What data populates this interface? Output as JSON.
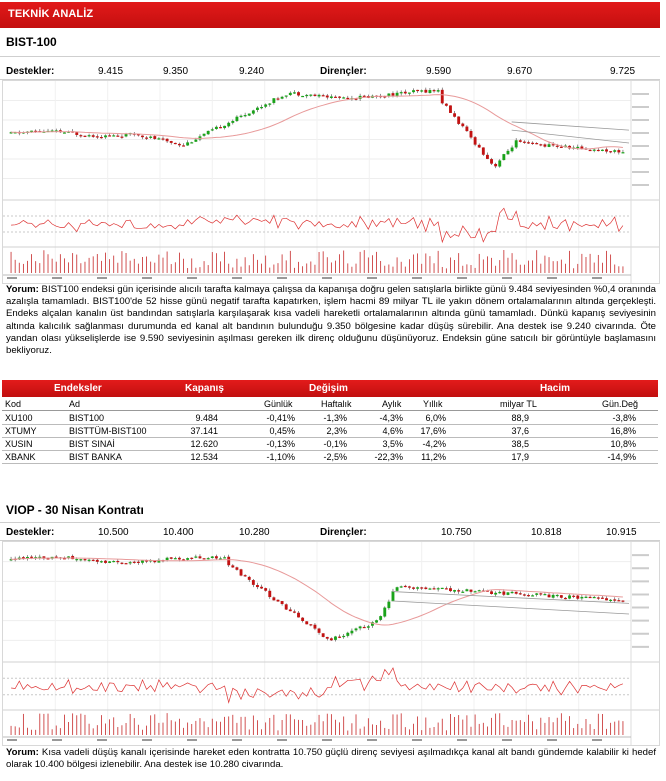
{
  "header": {
    "title": "TEKNİK ANALİZ"
  },
  "bist": {
    "title": "BIST-100",
    "supports_label": "Destekler:",
    "supports": [
      "9.415",
      "9.350",
      "9.240"
    ],
    "resistances_label": "Dirençler:",
    "resistances": [
      "9.590",
      "9.670",
      "9.725"
    ],
    "commentary_label": "Yorum:",
    "commentary": " BIST100 endeksi gün içerisinde alıcılı tarafta kalmaya çalışsa da kapanışa doğru gelen satışlarla birlikte günü 9.484 seviyesinden %0,4 oranında azalışla tamamladı. BIST100'de 52 hisse günü negatif tarafta kapatırken, işlem hacmi 89 milyar TL ile yakın dönem ortalamalarının altında gerçekleşti. Endeks alçalan kanalın üst bandından satışlarla karşılaşarak kısa vadeli hareketli ortalamalarının altında günü tamamladı. Dünkü kapanış seviyesinin altında kalıcılık sağlanması durumunda ed kanal alt bandının bulunduğu 9.350 bölgesine kadar düşüş sürebilir. Ana destek ise 9.240 civarında. Öte yandan olası yükselişlerde ise 9.590 seviyesinin aşılması gereken ilk direnç olduğunu düşünüyoruz.  Endeksin güne satıcılı bir görüntüyle başlamasını bekliyoruz."
  },
  "table": {
    "group_headers": {
      "endeksler": "Endeksler",
      "kapanis": "Kapanış",
      "degisim": "Değişim",
      "hacim": "Hacim"
    },
    "columns": {
      "kod": "Kod",
      "ad": "Ad",
      "gunluk": "Günlük",
      "haftalik": "Haftalık",
      "aylik": "Aylık",
      "yillik": "Yıllık",
      "milyar": "milyar TL",
      "gundeg": "Gün.Değ"
    },
    "rows": [
      {
        "kod": "XU100",
        "ad": "BIST100",
        "kapanis": "9.484",
        "gunluk": "-0,41%",
        "haftalik": "-1,3%",
        "aylik": "-4,3%",
        "yillik": "6,0%",
        "hacim": "88,9",
        "gundeg": "-3,8%"
      },
      {
        "kod": "XTUMY",
        "ad": "BISTTÜM-BIST100",
        "kapanis": "37.141",
        "gunluk": "0,45%",
        "haftalik": "2,3%",
        "aylik": "4,6%",
        "yillik": "17,6%",
        "hacim": "37,6",
        "gundeg": "16,8%"
      },
      {
        "kod": "XUSIN",
        "ad": "BIST SINAİ",
        "kapanis": "12.620",
        "gunluk": "-0,13%",
        "haftalik": "-0,1%",
        "aylik": "3,5%",
        "yillik": "-4,2%",
        "hacim": "38,5",
        "gundeg": "10,8%"
      },
      {
        "kod": "XBANK",
        "ad": "BIST BANKA",
        "kapanis": "12.534",
        "gunluk": "-1,10%",
        "haftalik": "-2,5%",
        "aylik": "-22,3%",
        "yillik": "11,2%",
        "hacim": "17,9",
        "gundeg": "-14,9%"
      }
    ]
  },
  "viop": {
    "title": "VIOP - 30 Nisan Kontratı",
    "supports_label": "Destekler:",
    "supports": [
      "10.500",
      "10.400",
      "10.280"
    ],
    "resistances_label": "Dirençler:",
    "resistances": [
      "10.750",
      "10.818",
      "10.915"
    ],
    "commentary_label": "Yorum:",
    "commentary": " Kısa vadeli düşüş kanalı içerisinde hareket eden kontratta 10.750 güçlü direnç seviyesi aşılmadıkça kanal alt bandı gündemde kalabilir ki hedef olarak 10.400 bölgesi izlenebilir. Ana destek ise 10.280 civarında."
  },
  "colors": {
    "accent": "#d11414",
    "up": "#1aa31a",
    "down": "#c21212",
    "ma": "#e89a9a"
  }
}
